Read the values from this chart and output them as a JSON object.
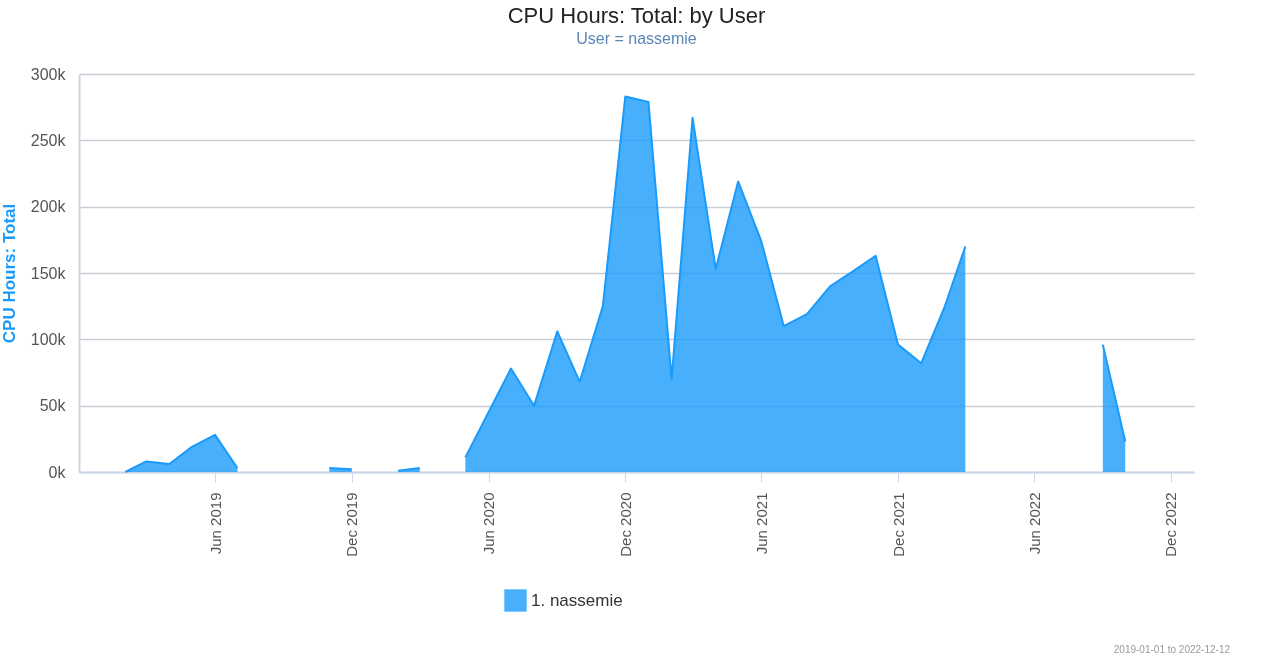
{
  "chart_data": {
    "type": "area",
    "title": "CPU Hours: Total: by User",
    "subtitle": "User = nassemie",
    "ylabel": "CPU Hours: Total",
    "x": [
      "2019-02",
      "2019-03",
      "2019-04",
      "2019-05",
      "2019-06",
      "2019-07",
      "2019-08",
      "2019-09",
      "2019-10",
      "2019-11",
      "2019-12",
      "2020-01",
      "2020-02",
      "2020-03",
      "2020-04",
      "2020-05",
      "2020-06",
      "2020-07",
      "2020-08",
      "2020-09",
      "2020-10",
      "2020-11",
      "2020-12",
      "2021-01",
      "2021-02",
      "2021-03",
      "2021-04",
      "2021-05",
      "2021-06",
      "2021-07",
      "2021-08",
      "2021-09",
      "2021-10",
      "2021-11",
      "2021-12",
      "2022-01",
      "2022-02",
      "2022-03",
      "2022-04",
      "2022-05",
      "2022-06",
      "2022-07",
      "2022-08",
      "2022-09",
      "2022-10"
    ],
    "series": [
      {
        "name": "1. nassemie",
        "color": "#1a9bfc",
        "values": [
          0,
          8000,
          6000,
          19000,
          28000,
          3000,
          null,
          null,
          null,
          3000,
          2000,
          null,
          1000,
          3000,
          null,
          11000,
          45000,
          78000,
          50000,
          106000,
          68000,
          125000,
          283000,
          279000,
          70000,
          267000,
          153000,
          219000,
          174000,
          110000,
          119000,
          140000,
          151000,
          163000,
          96000,
          82000,
          124000,
          170000,
          null,
          null,
          null,
          null,
          null,
          96000,
          23000
        ]
      }
    ],
    "xlim": [
      "2018-12",
      "2023-01"
    ],
    "xticks": [
      {
        "value": "2019-06",
        "label": "Jun 2019"
      },
      {
        "value": "2019-12",
        "label": "Dec 2019"
      },
      {
        "value": "2020-06",
        "label": "Jun 2020"
      },
      {
        "value": "2020-12",
        "label": "Dec 2020"
      },
      {
        "value": "2021-06",
        "label": "Jun 2021"
      },
      {
        "value": "2021-12",
        "label": "Dec 2021"
      },
      {
        "value": "2022-06",
        "label": "Jun 2022"
      },
      {
        "value": "2022-12",
        "label": "Dec 2022"
      }
    ],
    "ylim": [
      0,
      300000
    ],
    "yticks": [
      {
        "value": 0,
        "label": "0k"
      },
      {
        "value": 50000,
        "label": "50k"
      },
      {
        "value": 100000,
        "label": "100k"
      },
      {
        "value": 150000,
        "label": "150k"
      },
      {
        "value": 200000,
        "label": "200k"
      },
      {
        "value": 250000,
        "label": "250k"
      },
      {
        "value": 300000,
        "label": "300k"
      }
    ],
    "grid": "y",
    "legend": "bottom",
    "annotations": [
      "2019-01-01 to 2022-12-12"
    ]
  }
}
